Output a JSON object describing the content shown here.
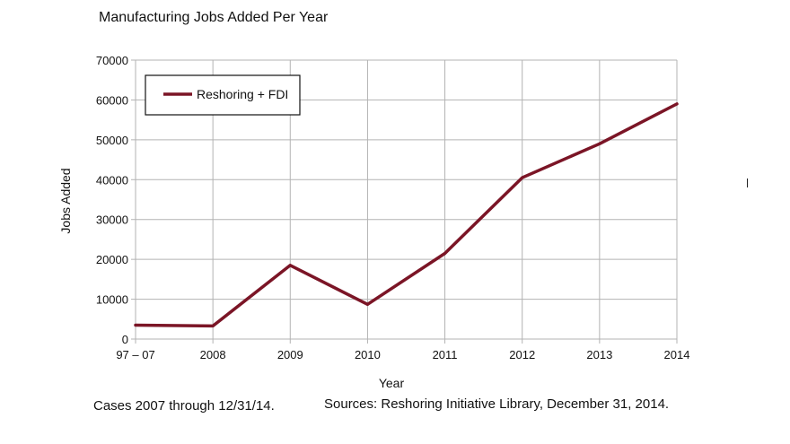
{
  "chart_data": {
    "type": "line",
    "title": "Manufacturing Jobs Added Per Year",
    "xlabel": "Year",
    "ylabel": "Jobs Added",
    "categories": [
      "97 – 07",
      "2008",
      "2009",
      "2010",
      "2011",
      "2012",
      "2013",
      "2014"
    ],
    "series": [
      {
        "name": "Reshoring + FDI",
        "color": "#7b1526",
        "values": [
          3500,
          3300,
          18500,
          8700,
          21500,
          40500,
          49000,
          59000
        ]
      }
    ],
    "ylim": [
      0,
      70000
    ],
    "yticks": [
      0,
      10000,
      20000,
      30000,
      40000,
      50000,
      60000,
      70000
    ],
    "grid": true,
    "legend": "top-left"
  },
  "notes": {
    "left": "Cases 2007 through 12/31/14.",
    "right": "Sources: Reshoring Initiative Library, December 31, 2014."
  }
}
